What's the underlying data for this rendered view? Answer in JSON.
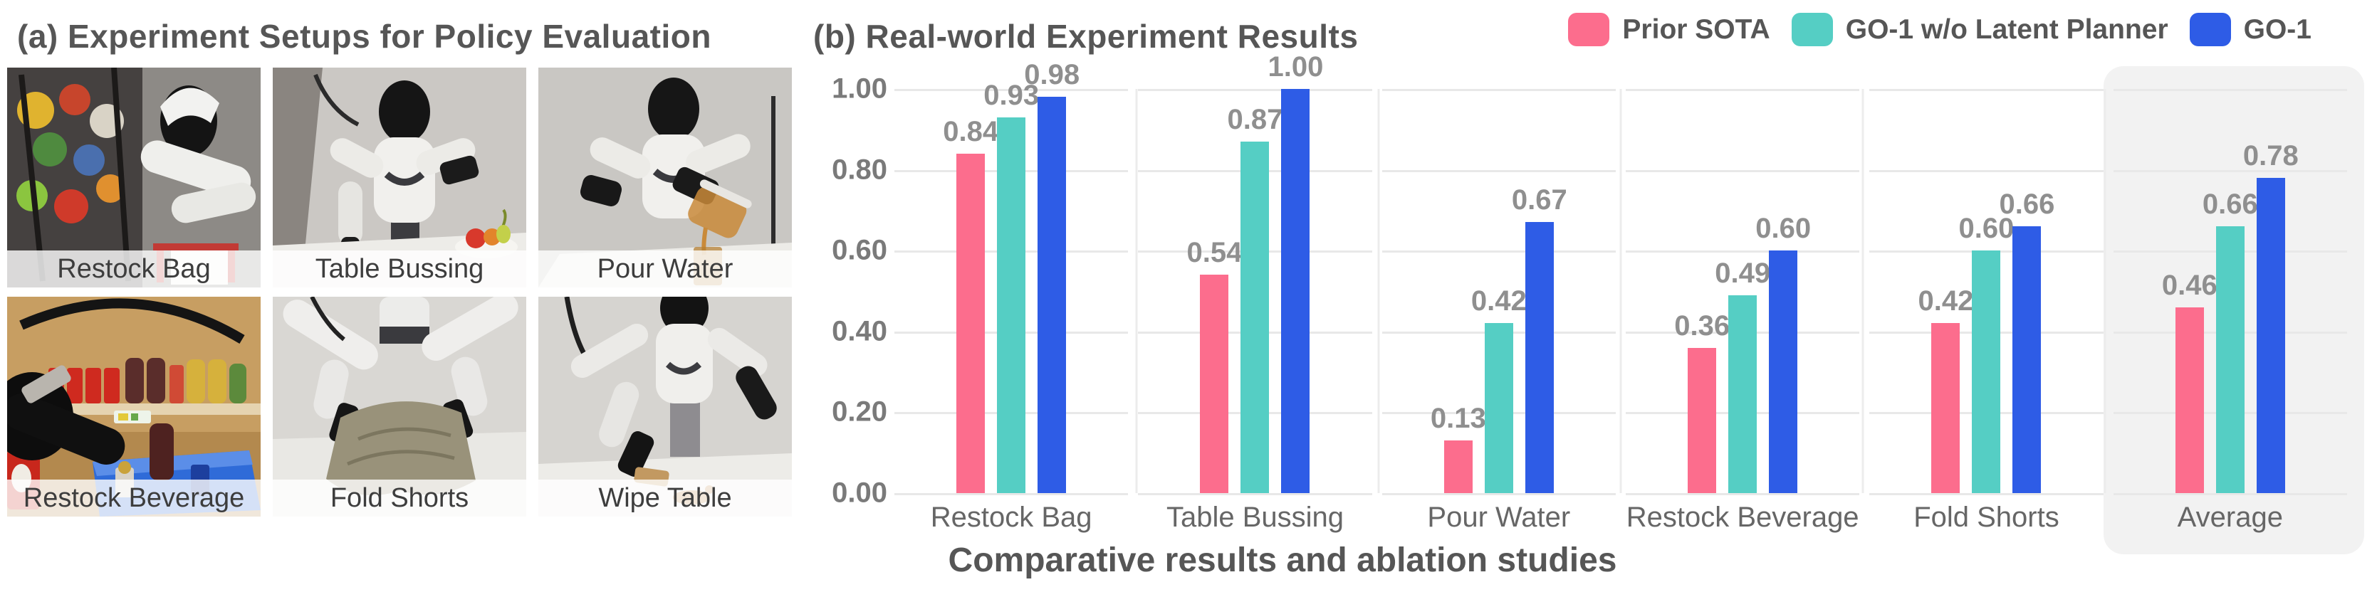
{
  "figure": {
    "panel_a": {
      "title": "(a) Experiment Setups for Policy Evaluation",
      "photos": [
        {
          "label": "Restock Bag"
        },
        {
          "label": "Table Bussing"
        },
        {
          "label": "Pour Water"
        },
        {
          "label": "Restock Beverage"
        },
        {
          "label": "Fold Shorts"
        },
        {
          "label": "Wipe Table"
        }
      ]
    },
    "panel_b": {
      "title": "(b) Real-world Experiment Results",
      "caption": "Comparative results and ablation studies"
    }
  },
  "chart_data": {
    "type": "bar",
    "categories": [
      "Restock Bag",
      "Table Bussing",
      "Pour Water",
      "Restock Beverage",
      "Fold Shorts",
      "Average"
    ],
    "series": [
      {
        "name": "Prior SOTA",
        "color": "#FC6D8D",
        "values": [
          0.84,
          0.54,
          0.13,
          0.36,
          0.42,
          0.46
        ]
      },
      {
        "name": "GO-1 w/o Latent Planner",
        "color": "#55CEC4",
        "values": [
          0.93,
          0.87,
          0.42,
          0.49,
          0.6,
          0.66
        ]
      },
      {
        "name": "GO-1",
        "color": "#2E5CE6",
        "values": [
          0.98,
          1.0,
          0.67,
          0.6,
          0.66,
          0.78
        ]
      }
    ],
    "ylim": [
      0,
      1
    ],
    "yticks": [
      "0.00",
      "0.20",
      "0.40",
      "0.60",
      "0.80",
      "1.00"
    ],
    "grid": true,
    "legend_position": "top-right",
    "highlight_category": "Average",
    "highlight_color": "#f2f2f2",
    "value_label_format": "2-decimals"
  }
}
